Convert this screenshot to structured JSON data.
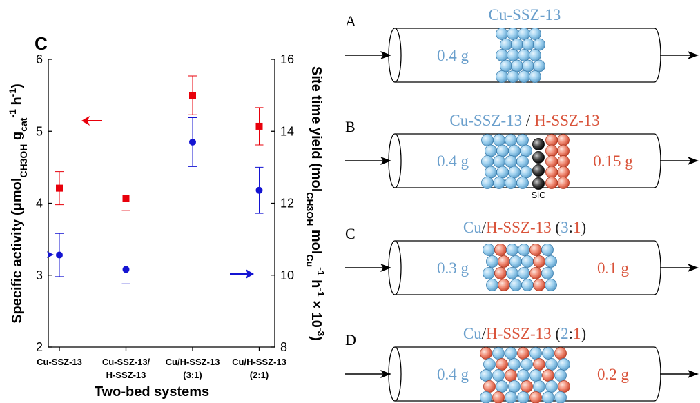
{
  "chart_data": {
    "type": "scatter",
    "panel": "C",
    "xlabel": "Two-bed systems",
    "ylabel": [
      "Specific activity (μmol",
      "CH3OH",
      " g",
      "cat",
      "-1",
      " h",
      "-1",
      ")"
    ],
    "y2label": [
      "Site time yield (mol",
      "CH3OH",
      " mol",
      "Cu",
      "-1",
      " h",
      "-1",
      " × 10",
      "-3",
      ")"
    ],
    "categories": [
      [
        "Cu-SSZ-13"
      ],
      [
        "Cu-SSZ-13/",
        "H-SSZ-13"
      ],
      [
        "Cu/H-SSZ-13",
        "(3:1)"
      ],
      [
        "Cu/H-SSZ-13",
        "(2:1)"
      ]
    ],
    "ylim": [
      2,
      6
    ],
    "yticks": [
      2,
      3,
      4,
      5,
      6
    ],
    "y2lim": [
      8,
      16
    ],
    "y2ticks": [
      8,
      10,
      12,
      14,
      16
    ],
    "series": [
      {
        "color": "#e8000b",
        "marker": "square",
        "values": [
          4.21,
          4.07,
          5.5,
          5.07
        ],
        "errors": [
          0.23,
          0.17,
          0.27,
          0.26
        ]
      },
      {
        "color": "#1414d2",
        "marker": "circle",
        "axis": "y2",
        "values": [
          10.56,
          10.16,
          13.7,
          12.36
        ],
        "errors": [
          0.6,
          0.4,
          0.68,
          0.64
        ]
      }
    ]
  },
  "diagrams": [
    {
      "label": "A",
      "title": [
        {
          "text": "Cu-SSZ-13",
          "color": "#6a9fcc"
        }
      ],
      "mass_left": {
        "text": "0.4 g",
        "color": "#6a9fcc"
      }
    },
    {
      "label": "B",
      "title": [
        {
          "text": "Cu-SSZ-13",
          "color": "#6a9fcc"
        },
        {
          "text": " / ",
          "color": "#222222"
        },
        {
          "text": "H-SSZ-13",
          "color": "#d9533a"
        }
      ],
      "mass_left": {
        "text": "0.4 g",
        "color": "#6a9fcc"
      },
      "mass_right": {
        "text": "0.15 g",
        "color": "#d9533a"
      },
      "note": "SiC"
    },
    {
      "label": "C",
      "title": [
        {
          "text": "Cu",
          "color": "#6a9fcc"
        },
        {
          "text": "/",
          "color": "#222222"
        },
        {
          "text": "H-SSZ-13",
          "color": "#d9533a"
        },
        {
          "text": " (",
          "color": "#222222"
        },
        {
          "text": "3",
          "color": "#6a9fcc"
        },
        {
          "text": ":",
          "color": "#222222"
        },
        {
          "text": "1",
          "color": "#d9533a"
        },
        {
          "text": ")",
          "color": "#222222"
        }
      ],
      "mass_left": {
        "text": "0.3 g",
        "color": "#6a9fcc"
      },
      "mass_right": {
        "text": "0.1 g",
        "color": "#d9533a"
      }
    },
    {
      "label": "D",
      "title": [
        {
          "text": "Cu",
          "color": "#6a9fcc"
        },
        {
          "text": "/",
          "color": "#222222"
        },
        {
          "text": "H-SSZ-13",
          "color": "#d9533a"
        },
        {
          "text": " (",
          "color": "#222222"
        },
        {
          "text": "2",
          "color": "#6a9fcc"
        },
        {
          "text": ":",
          "color": "#222222"
        },
        {
          "text": "1",
          "color": "#d9533a"
        },
        {
          "text": ")",
          "color": "#222222"
        }
      ],
      "mass_left": {
        "text": "0.4 g",
        "color": "#6a9fcc"
      },
      "mass_right": {
        "text": "0.2 g",
        "color": "#d9533a"
      }
    }
  ]
}
